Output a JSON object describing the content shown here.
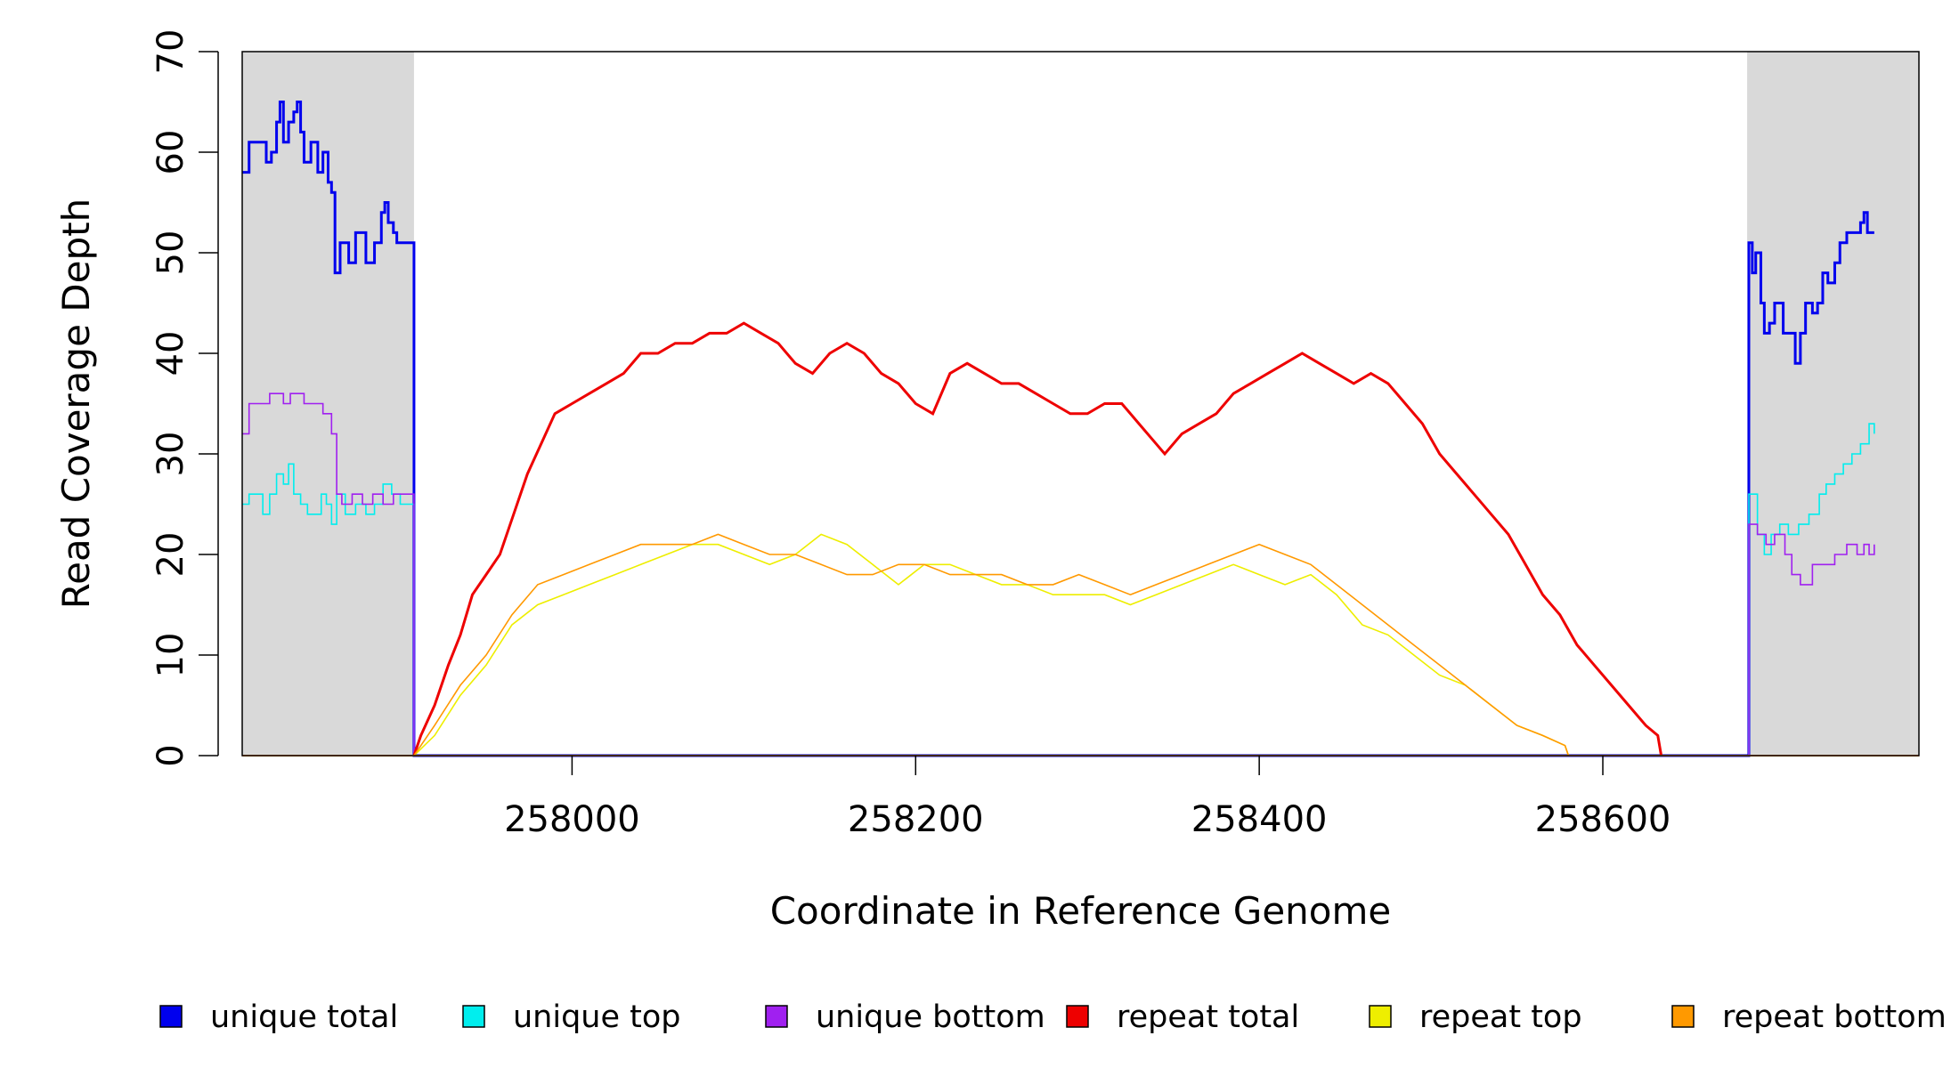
{
  "chart_data": {
    "type": "line",
    "xlabel": "Coordinate in Reference Genome",
    "ylabel": "Read Coverage Depth",
    "xlim": [
      257808,
      258784
    ],
    "ylim": [
      0,
      70
    ],
    "x_ticks": [
      258000,
      258200,
      258400,
      258600
    ],
    "x_tick_labels": [
      "258000",
      "258200",
      "258400",
      "258600"
    ],
    "y_ticks": [
      0,
      10,
      20,
      30,
      40,
      50,
      60,
      70
    ],
    "y_tick_labels": [
      "0",
      "10",
      "20",
      "30",
      "40",
      "50",
      "60",
      "70"
    ],
    "grid": false,
    "legend_position": "bottom",
    "shaded_regions": [
      [
        257808,
        257908
      ],
      [
        258684,
        258784
      ]
    ],
    "shade_color": "#d9d9d9",
    "series": [
      {
        "name": "unique total",
        "color": "#0000ee",
        "step": true,
        "points": [
          [
            257808,
            58
          ],
          [
            257812,
            61
          ],
          [
            257820,
            61
          ],
          [
            257822,
            59
          ],
          [
            257825,
            60
          ],
          [
            257828,
            63
          ],
          [
            257830,
            65
          ],
          [
            257832,
            61
          ],
          [
            257835,
            63
          ],
          [
            257838,
            64
          ],
          [
            257840,
            65
          ],
          [
            257842,
            62
          ],
          [
            257844,
            59
          ],
          [
            257848,
            61
          ],
          [
            257852,
            58
          ],
          [
            257855,
            60
          ],
          [
            257858,
            57
          ],
          [
            257860,
            56
          ],
          [
            257862,
            48
          ],
          [
            257865,
            51
          ],
          [
            257870,
            49
          ],
          [
            257874,
            52
          ],
          [
            257880,
            49
          ],
          [
            257885,
            51
          ],
          [
            257889,
            54
          ],
          [
            257891,
            55
          ],
          [
            257893,
            53
          ],
          [
            257896,
            52
          ],
          [
            257898,
            51
          ],
          [
            257907,
            51
          ],
          [
            257908,
            0
          ],
          [
            258684,
            0
          ],
          [
            258685,
            51
          ],
          [
            258687,
            48
          ],
          [
            258689,
            50
          ],
          [
            258692,
            45
          ],
          [
            258694,
            42
          ],
          [
            258697,
            43
          ],
          [
            258700,
            45
          ],
          [
            258705,
            42
          ],
          [
            258710,
            42
          ],
          [
            258712,
            39
          ],
          [
            258715,
            42
          ],
          [
            258718,
            45
          ],
          [
            258722,
            44
          ],
          [
            258725,
            45
          ],
          [
            258728,
            48
          ],
          [
            258731,
            47
          ],
          [
            258735,
            49
          ],
          [
            258738,
            51
          ],
          [
            258742,
            52
          ],
          [
            258748,
            52
          ],
          [
            258750,
            53
          ],
          [
            258752,
            54
          ],
          [
            258754,
            52
          ],
          [
            258758,
            52
          ]
        ]
      },
      {
        "name": "unique top",
        "color": "#00eeee",
        "step": true,
        "points": [
          [
            257808,
            25
          ],
          [
            257812,
            26
          ],
          [
            257820,
            24
          ],
          [
            257824,
            26
          ],
          [
            257828,
            28
          ],
          [
            257832,
            27
          ],
          [
            257835,
            29
          ],
          [
            257838,
            26
          ],
          [
            257842,
            25
          ],
          [
            257846,
            24
          ],
          [
            257850,
            24
          ],
          [
            257854,
            26
          ],
          [
            257857,
            25
          ],
          [
            257860,
            23
          ],
          [
            257863,
            26
          ],
          [
            257868,
            24
          ],
          [
            257874,
            25
          ],
          [
            257880,
            24
          ],
          [
            257885,
            25
          ],
          [
            257890,
            27
          ],
          [
            257895,
            26
          ],
          [
            257900,
            25
          ],
          [
            257907,
            25
          ],
          [
            257908,
            0
          ],
          [
            258684,
            0
          ],
          [
            258685,
            26
          ],
          [
            258690,
            22
          ],
          [
            258694,
            20
          ],
          [
            258698,
            22
          ],
          [
            258703,
            23
          ],
          [
            258708,
            22
          ],
          [
            258714,
            23
          ],
          [
            258720,
            24
          ],
          [
            258726,
            26
          ],
          [
            258730,
            27
          ],
          [
            258735,
            28
          ],
          [
            258740,
            29
          ],
          [
            258745,
            30
          ],
          [
            258750,
            31
          ],
          [
            258755,
            33
          ],
          [
            258758,
            32
          ]
        ]
      },
      {
        "name": "unique bottom",
        "color": "#a020f0",
        "step": true,
        "points": [
          [
            257808,
            32
          ],
          [
            257812,
            35
          ],
          [
            257820,
            35
          ],
          [
            257824,
            36
          ],
          [
            257828,
            36
          ],
          [
            257832,
            35
          ],
          [
            257836,
            36
          ],
          [
            257840,
            36
          ],
          [
            257844,
            35
          ],
          [
            257850,
            35
          ],
          [
            257855,
            34
          ],
          [
            257860,
            32
          ],
          [
            257863,
            26
          ],
          [
            257866,
            25
          ],
          [
            257872,
            26
          ],
          [
            257878,
            25
          ],
          [
            257884,
            26
          ],
          [
            257890,
            25
          ],
          [
            257896,
            26
          ],
          [
            257907,
            26
          ],
          [
            257908,
            0
          ],
          [
            258684,
            0
          ],
          [
            258685,
            23
          ],
          [
            258690,
            22
          ],
          [
            258695,
            21
          ],
          [
            258700,
            22
          ],
          [
            258706,
            20
          ],
          [
            258710,
            18
          ],
          [
            258715,
            17
          ],
          [
            258722,
            19
          ],
          [
            258728,
            19
          ],
          [
            258735,
            20
          ],
          [
            258742,
            21
          ],
          [
            258748,
            20
          ],
          [
            258752,
            21
          ],
          [
            258755,
            20
          ],
          [
            258758,
            21
          ]
        ]
      },
      {
        "name": "repeat total",
        "color": "#ee0000",
        "step": false,
        "points": [
          [
            257908,
            0
          ],
          [
            257912,
            2
          ],
          [
            257920,
            5
          ],
          [
            257928,
            9
          ],
          [
            257935,
            12
          ],
          [
            257942,
            16
          ],
          [
            257950,
            18
          ],
          [
            257958,
            20
          ],
          [
            257966,
            24
          ],
          [
            257974,
            28
          ],
          [
            257982,
            31
          ],
          [
            257990,
            34
          ],
          [
            258000,
            35
          ],
          [
            258010,
            36
          ],
          [
            258020,
            37
          ],
          [
            258030,
            38
          ],
          [
            258040,
            40
          ],
          [
            258050,
            40
          ],
          [
            258060,
            41
          ],
          [
            258070,
            41
          ],
          [
            258080,
            42
          ],
          [
            258090,
            42
          ],
          [
            258100,
            43
          ],
          [
            258110,
            42
          ],
          [
            258120,
            41
          ],
          [
            258130,
            39
          ],
          [
            258140,
            38
          ],
          [
            258150,
            40
          ],
          [
            258160,
            41
          ],
          [
            258170,
            40
          ],
          [
            258180,
            38
          ],
          [
            258190,
            37
          ],
          [
            258200,
            35
          ],
          [
            258210,
            34
          ],
          [
            258220,
            38
          ],
          [
            258230,
            39
          ],
          [
            258240,
            38
          ],
          [
            258250,
            37
          ],
          [
            258260,
            37
          ],
          [
            258270,
            36
          ],
          [
            258280,
            35
          ],
          [
            258290,
            34
          ],
          [
            258300,
            34
          ],
          [
            258310,
            35
          ],
          [
            258320,
            35
          ],
          [
            258330,
            33
          ],
          [
            258340,
            31
          ],
          [
            258345,
            30
          ],
          [
            258355,
            32
          ],
          [
            258365,
            33
          ],
          [
            258375,
            34
          ],
          [
            258385,
            36
          ],
          [
            258395,
            37
          ],
          [
            258405,
            38
          ],
          [
            258415,
            39
          ],
          [
            258425,
            40
          ],
          [
            258435,
            39
          ],
          [
            258445,
            38
          ],
          [
            258455,
            37
          ],
          [
            258465,
            38
          ],
          [
            258475,
            37
          ],
          [
            258485,
            35
          ],
          [
            258495,
            33
          ],
          [
            258505,
            30
          ],
          [
            258515,
            28
          ],
          [
            258525,
            26
          ],
          [
            258535,
            24
          ],
          [
            258545,
            22
          ],
          [
            258555,
            19
          ],
          [
            258565,
            16
          ],
          [
            258575,
            14
          ],
          [
            258585,
            11
          ],
          [
            258595,
            9
          ],
          [
            258605,
            7
          ],
          [
            258615,
            5
          ],
          [
            258625,
            3
          ],
          [
            258632,
            2
          ],
          [
            258634,
            0
          ]
        ]
      },
      {
        "name": "repeat top",
        "color": "#eeee00",
        "step": false,
        "points": [
          [
            257908,
            0
          ],
          [
            257920,
            2
          ],
          [
            257935,
            6
          ],
          [
            257950,
            9
          ],
          [
            257965,
            13
          ],
          [
            257980,
            15
          ],
          [
            257995,
            16
          ],
          [
            258010,
            17
          ],
          [
            258025,
            18
          ],
          [
            258040,
            19
          ],
          [
            258055,
            20
          ],
          [
            258070,
            21
          ],
          [
            258085,
            21
          ],
          [
            258100,
            20
          ],
          [
            258115,
            19
          ],
          [
            258130,
            20
          ],
          [
            258145,
            22
          ],
          [
            258160,
            21
          ],
          [
            258175,
            19
          ],
          [
            258190,
            17
          ],
          [
            258205,
            19
          ],
          [
            258220,
            19
          ],
          [
            258235,
            18
          ],
          [
            258250,
            17
          ],
          [
            258265,
            17
          ],
          [
            258280,
            16
          ],
          [
            258295,
            16
          ],
          [
            258310,
            16
          ],
          [
            258325,
            15
          ],
          [
            258340,
            16
          ],
          [
            258355,
            17
          ],
          [
            258370,
            18
          ],
          [
            258385,
            19
          ],
          [
            258400,
            18
          ],
          [
            258415,
            17
          ],
          [
            258430,
            18
          ],
          [
            258445,
            16
          ],
          [
            258460,
            13
          ],
          [
            258475,
            12
          ],
          [
            258490,
            10
          ],
          [
            258505,
            8
          ],
          [
            258520,
            7
          ],
          [
            258535,
            5
          ],
          [
            258550,
            3
          ],
          [
            258565,
            2
          ],
          [
            258578,
            1
          ],
          [
            258580,
            0
          ]
        ]
      },
      {
        "name": "repeat bottom",
        "color": "#ff9900",
        "step": false,
        "points": [
          [
            257908,
            0
          ],
          [
            257920,
            3
          ],
          [
            257935,
            7
          ],
          [
            257950,
            10
          ],
          [
            257965,
            14
          ],
          [
            257980,
            17
          ],
          [
            257995,
            18
          ],
          [
            258010,
            19
          ],
          [
            258025,
            20
          ],
          [
            258040,
            21
          ],
          [
            258055,
            21
          ],
          [
            258070,
            21
          ],
          [
            258085,
            22
          ],
          [
            258100,
            21
          ],
          [
            258115,
            20
          ],
          [
            258130,
            20
          ],
          [
            258145,
            19
          ],
          [
            258160,
            18
          ],
          [
            258175,
            18
          ],
          [
            258190,
            19
          ],
          [
            258205,
            19
          ],
          [
            258220,
            18
          ],
          [
            258235,
            18
          ],
          [
            258250,
            18
          ],
          [
            258265,
            17
          ],
          [
            258280,
            17
          ],
          [
            258295,
            18
          ],
          [
            258310,
            17
          ],
          [
            258325,
            16
          ],
          [
            258340,
            17
          ],
          [
            258355,
            18
          ],
          [
            258370,
            19
          ],
          [
            258385,
            20
          ],
          [
            258400,
            21
          ],
          [
            258415,
            20
          ],
          [
            258430,
            19
          ],
          [
            258445,
            17
          ],
          [
            258460,
            15
          ],
          [
            258475,
            13
          ],
          [
            258490,
            11
          ],
          [
            258505,
            9
          ],
          [
            258520,
            7
          ],
          [
            258535,
            5
          ],
          [
            258550,
            3
          ],
          [
            258565,
            2
          ],
          [
            258578,
            1
          ],
          [
            258580,
            0
          ]
        ]
      }
    ]
  }
}
